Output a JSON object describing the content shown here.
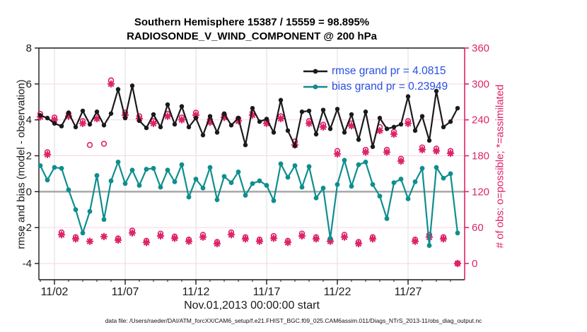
{
  "title": {
    "line1": "Southern Hemisphere 15387 / 15559 = 98.895%",
    "line2": "RADIOSONDE_V_WIND_COMPONENT @ 200 hPa"
  },
  "legend": {
    "rmse_label": "rmse grand pr = 4.0815",
    "bias_label": "bias grand pr = 0.23949",
    "text_color": "#2750e0"
  },
  "caption": "data file: /Users/raeder/DAI/ATM_forcXX/CAM6_setup/f.e21.FHIST_BGC.f09_025.CAM6assim.011/Diags_NTrS_2013-11/obs_diag_output.nc",
  "colors": {
    "rmse": "#1a1a1a",
    "bias": "#0f8e8e",
    "obs": "#dd2369",
    "grid_h": "#f6d7e2",
    "grid_v": "#dcdcdc",
    "zero_line": "#ababab",
    "axis": "#1a1a1a"
  },
  "chart_data": {
    "type": "line",
    "title": "Southern Hemisphere 15387 / 15559 = 98.895% | RADIOSONDE_V_WIND_COMPONENT @ 200 hPa",
    "xlabel": "Nov.01,2013 00:00:00 start",
    "left_axis": {
      "label": "rmse and bias (model - observation)",
      "ticks": [
        8,
        6,
        4,
        2,
        0,
        -2,
        -4
      ],
      "range": [
        -4.9,
        8
      ]
    },
    "right_axis": {
      "label": "# of obs: o=possible; *=assimilated",
      "ticks": [
        360,
        300,
        240,
        180,
        120,
        60,
        0
      ],
      "range": [
        -27,
        360
      ]
    },
    "x_axis": {
      "tick_days": [
        2,
        7,
        12,
        17,
        22,
        27
      ],
      "tick_labels": [
        "11/02",
        "11/07",
        "11/12",
        "11/17",
        "11/22",
        "11/27"
      ],
      "minor_tick_days": [
        1,
        2,
        3,
        4,
        5,
        6,
        7,
        8,
        9,
        10,
        11,
        12,
        13,
        14,
        15,
        16,
        17,
        18,
        19,
        20,
        21,
        22,
        23,
        24,
        25,
        26,
        27,
        28,
        29,
        30
      ],
      "range_days": [
        0.9,
        31.0
      ]
    },
    "grid": true,
    "zero_line": 0,
    "legend_position": "top-right",
    "x_days": [
      1,
      1.5,
      2,
      2.5,
      3,
      3.5,
      4,
      4.5,
      5,
      5.5,
      6,
      6.5,
      7,
      7.5,
      8,
      8.5,
      9,
      9.5,
      10,
      10.5,
      11,
      11.5,
      12,
      12.5,
      13,
      13.5,
      14,
      14.5,
      15,
      15.5,
      16,
      16.5,
      17,
      17.5,
      18,
      18.5,
      19,
      19.5,
      20,
      20.5,
      21,
      21.5,
      22,
      22.5,
      23,
      23.5,
      24,
      24.5,
      25,
      25.5,
      26,
      26.5,
      27,
      27.5,
      28,
      28.5,
      29,
      29.5,
      30,
      30.5
    ],
    "series": [
      {
        "name": "rmse",
        "grand_value": 4.0815,
        "axis": "left",
        "marker": "dot",
        "values": [
          4.25,
          4.1,
          3.8,
          3.65,
          4.4,
          3.6,
          4.5,
          3.75,
          4.45,
          3.7,
          4.35,
          5.7,
          4.1,
          5.9,
          3.95,
          3.55,
          4.3,
          3.6,
          4.85,
          3.75,
          4.75,
          3.6,
          4.1,
          3.15,
          4.2,
          3.3,
          4.35,
          3.7,
          4.1,
          2.6,
          4.65,
          3.9,
          4.05,
          3.3,
          5.1,
          3.4,
          2.55,
          4.45,
          4.5,
          3.2,
          4.55,
          3.5,
          4.6,
          3.3,
          4.3,
          2.9,
          4.45,
          2.5,
          4.1,
          3.5,
          3.6,
          3.75,
          5.3,
          3.4,
          4.2,
          2.85,
          5.6,
          3.6,
          3.9,
          4.65
        ]
      },
      {
        "name": "bias",
        "grand_value": 0.23949,
        "axis": "left",
        "marker": "dot",
        "values": [
          1.45,
          0.65,
          1.35,
          1.3,
          0.1,
          -1.0,
          -2.3,
          -1.1,
          0.9,
          -1.55,
          0.6,
          1.65,
          0.45,
          1.2,
          0.35,
          1.25,
          1.3,
          0.25,
          1.2,
          0.55,
          1.5,
          -0.3,
          0.7,
          0.2,
          1.35,
          -0.45,
          0.85,
          0.5,
          1.1,
          -0.2,
          0.45,
          0.6,
          0.35,
          -0.5,
          1.55,
          0.8,
          1.45,
          0.25,
          1.4,
          -0.35,
          0.2,
          -2.6,
          0.4,
          1.75,
          0.3,
          1.5,
          1.65,
          0.4,
          -0.25,
          -1.5,
          0.5,
          0.7,
          -0.4,
          0.55,
          1.3,
          -3.0,
          1.35,
          0.75,
          1.0,
          -2.3
        ]
      },
      {
        "name": "N_possible",
        "axis": "right",
        "marker": "circle",
        "values": [
          250,
          186,
          244,
          52,
          250,
          44,
          238,
          198,
          246,
          200,
          306,
          42,
          252,
          55,
          246,
          38,
          238,
          50,
          250,
          45,
          244,
          40,
          252,
          48,
          240,
          36,
          248,
          52,
          242,
          44,
          252,
          40,
          238,
          46,
          246,
          38,
          204,
          50,
          238,
          44,
          232,
          40,
          188,
          48,
          234,
          36,
          190,
          44,
          228,
          190,
          220,
          175,
          238,
          40,
          194,
          48,
          192,
          44,
          188,
          0
        ]
      },
      {
        "name": "N_assimilated",
        "axis": "right",
        "marker": "asterisk",
        "values": [
          245,
          182,
          240,
          48,
          246,
          41,
          234,
          37,
          242,
          45,
          300,
          39,
          248,
          51,
          242,
          35,
          234,
          46,
          246,
          42,
          240,
          37,
          248,
          44,
          236,
          33,
          244,
          48,
          238,
          41,
          248,
          37,
          234,
          42,
          242,
          35,
          198,
          46,
          234,
          41,
          228,
          37,
          183,
          44,
          230,
          33,
          186,
          41,
          222,
          186,
          216,
          171,
          234,
          37,
          190,
          44,
          188,
          41,
          184,
          0
        ]
      }
    ]
  }
}
